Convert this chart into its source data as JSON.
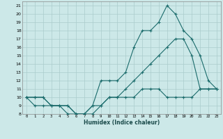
{
  "xlabel": "Humidex (Indice chaleur)",
  "bg_color": "#cce8e8",
  "grid_color": "#aacccc",
  "line_color": "#1a6b6b",
  "xlim": [
    -0.5,
    23.5
  ],
  "ylim": [
    8,
    21.5
  ],
  "xticks": [
    0,
    1,
    2,
    3,
    4,
    5,
    6,
    7,
    8,
    9,
    10,
    11,
    12,
    13,
    14,
    15,
    16,
    17,
    18,
    19,
    20,
    21,
    22,
    23
  ],
  "yticks": [
    8,
    9,
    10,
    11,
    12,
    13,
    14,
    15,
    16,
    17,
    18,
    19,
    20,
    21
  ],
  "line1_x": [
    0,
    1,
    2,
    3,
    4,
    5,
    6,
    7,
    8,
    9,
    10,
    11,
    12,
    13,
    14,
    15,
    16,
    17,
    18,
    19,
    20,
    21,
    22,
    23
  ],
  "line1_y": [
    10,
    10,
    10,
    9,
    9,
    9,
    8,
    8,
    9,
    9,
    10,
    10,
    10,
    10,
    11,
    11,
    11,
    10,
    10,
    10,
    10,
    11,
    11,
    11
  ],
  "line2_x": [
    0,
    1,
    2,
    3,
    4,
    5,
    6,
    7,
    8,
    9,
    10,
    11,
    12,
    13,
    14,
    15,
    16,
    17,
    18,
    19,
    20,
    21,
    22,
    23
  ],
  "line2_y": [
    10,
    10,
    10,
    9,
    9,
    9,
    8,
    8,
    9,
    12,
    12,
    12,
    13,
    16,
    18,
    18,
    19,
    21,
    20,
    18,
    17,
    15,
    12,
    11
  ],
  "line3_x": [
    0,
    1,
    2,
    3,
    4,
    5,
    6,
    7,
    8,
    9,
    10,
    11,
    12,
    13,
    14,
    15,
    16,
    17,
    18,
    19,
    20,
    21,
    22,
    23
  ],
  "line3_y": [
    10,
    9,
    9,
    9,
    9,
    8,
    8,
    8,
    8,
    9,
    10,
    10,
    11,
    12,
    13,
    14,
    15,
    16,
    17,
    17,
    15,
    11,
    11,
    11
  ]
}
